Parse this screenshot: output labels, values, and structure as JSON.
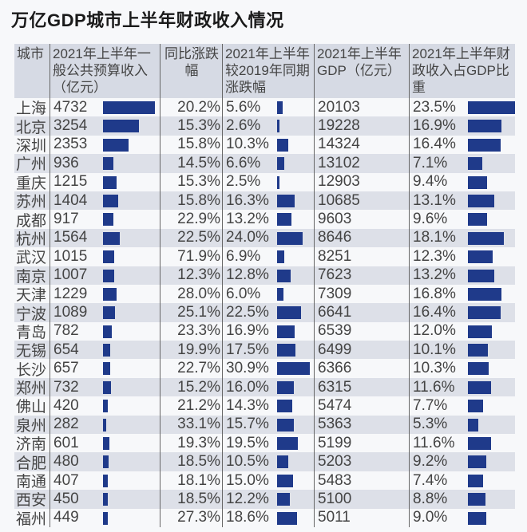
{
  "title": "万亿GDP城市上半年财政收入情况",
  "colors": {
    "bar": "#1f3a8a",
    "header_bg": "#d6dae4",
    "alt_row_bg": "#dde0e8"
  },
  "chart_data": {
    "type": "table",
    "columns": [
      "城市",
      "2021年上半年一般公共预算收入（亿元）",
      "同比涨跌幅",
      "2021年上半年较2019年同期涨跌幅",
      "2021年上半年GDP（亿元）",
      "2021年上半年财政收入占GDP比重"
    ],
    "rows": [
      [
        "上海",
        "4732",
        "20.2%",
        "5.6%",
        "20103",
        "23.5%"
      ],
      [
        "北京",
        "3254",
        "15.3%",
        "2.6%",
        "19228",
        "16.9%"
      ],
      [
        "深圳",
        "2353",
        "15.8%",
        "10.3%",
        "14324",
        "16.4%"
      ],
      [
        "广州",
        "936",
        "14.5%",
        "6.6%",
        "13102",
        "7.1%"
      ],
      [
        "重庆",
        "1215",
        "15.3%",
        "2.5%",
        "12903",
        "9.4%"
      ],
      [
        "苏州",
        "1404",
        "15.8%",
        "16.3%",
        "10685",
        "13.1%"
      ],
      [
        "成都",
        "917",
        "22.9%",
        "13.2%",
        "9603",
        "9.6%"
      ],
      [
        "杭州",
        "1564",
        "22.5%",
        "24.0%",
        "8646",
        "18.1%"
      ],
      [
        "武汉",
        "1015",
        "71.9%",
        "6.9%",
        "8251",
        "12.3%"
      ],
      [
        "南京",
        "1007",
        "12.3%",
        "12.8%",
        "7623",
        "13.2%"
      ],
      [
        "天津",
        "1229",
        "28.0%",
        "6.0%",
        "7309",
        "16.8%"
      ],
      [
        "宁波",
        "1089",
        "25.1%",
        "22.5%",
        "6641",
        "16.4%"
      ],
      [
        "青岛",
        "782",
        "23.3%",
        "16.9%",
        "6539",
        "12.0%"
      ],
      [
        "无锡",
        "654",
        "19.9%",
        "17.5%",
        "6499",
        "10.1%"
      ],
      [
        "长沙",
        "657",
        "22.7%",
        "30.9%",
        "6366",
        "10.3%"
      ],
      [
        "郑州",
        "732",
        "15.2%",
        "16.0%",
        "6315",
        "11.6%"
      ],
      [
        "佛山",
        "420",
        "21.2%",
        "14.3%",
        "5474",
        "7.7%"
      ],
      [
        "泉州",
        "282",
        "33.1%",
        "15.7%",
        "5363",
        "5.3%"
      ],
      [
        "济南",
        "601",
        "19.3%",
        "19.5%",
        "5199",
        "11.6%"
      ],
      [
        "合肥",
        "480",
        "18.5%",
        "10.5%",
        "5203",
        "9.2%"
      ],
      [
        "南通",
        "407",
        "18.1%",
        "15.0%",
        "5483",
        "7.4%"
      ],
      [
        "西安",
        "450",
        "18.5%",
        "12.2%",
        "5100",
        "8.8%"
      ],
      [
        "福州",
        "449",
        "27.3%",
        "18.6%",
        "5011",
        "9.0%"
      ]
    ],
    "bar_columns": [
      1,
      3,
      5
    ]
  }
}
